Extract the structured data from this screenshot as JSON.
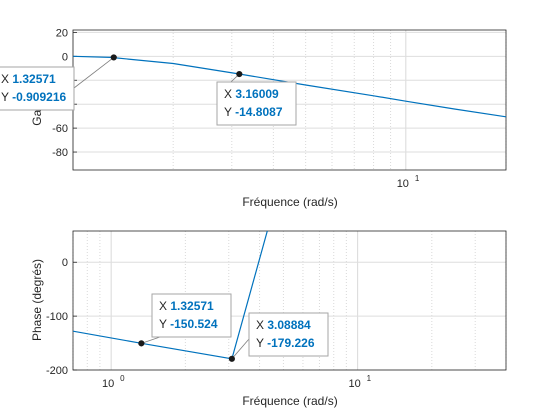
{
  "chart_data": [
    {
      "type": "line",
      "panel": "gain",
      "xlabel": "Fréquence (rad/s)",
      "ylabel": "Gain (dB)",
      "xscale": "log",
      "xlim": [
        1.0,
        20.0
      ],
      "ylim": [
        -95,
        22
      ],
      "yticks": [
        "20",
        "0",
        "-20",
        "-40",
        "-60",
        "-80"
      ],
      "ytick_values": [
        20,
        0,
        -20,
        -40,
        -60,
        -80
      ],
      "xticks": [
        {
          "value": 10,
          "base": "10",
          "exp": "1"
        }
      ],
      "grid": true,
      "line_color": "#0072bd",
      "x": [
        1.0,
        1.3,
        2.0,
        3.16,
        5.0,
        8.0,
        10.0,
        14.0,
        20.0
      ],
      "y": [
        0.0,
        -0.9,
        -6.0,
        -14.8,
        -24.0,
        -33.0,
        -37.5,
        -44.0,
        -50.5
      ],
      "datatips": [
        {
          "x_key": "X",
          "x": "1.32571",
          "y_key": "Y",
          "y": "-0.909216",
          "xv": 1.32571,
          "yv": -0.909216
        },
        {
          "x_key": "X",
          "x": "3.16009",
          "y_key": "Y",
          "y": "-14.8087",
          "xv": 3.16009,
          "yv": -14.8087
        }
      ]
    },
    {
      "type": "line",
      "panel": "phase",
      "xlabel": "Fréquence (rad/s)",
      "ylabel": "Phase (degrés)",
      "xscale": "log",
      "xlim": [
        0.7,
        40.0
      ],
      "ylim": [
        -200,
        58
      ],
      "yticks": [
        "0",
        "-100",
        "-200"
      ],
      "ytick_values": [
        0,
        -100,
        -200
      ],
      "xticks": [
        {
          "value": 1,
          "base": "10",
          "exp": "0"
        },
        {
          "value": 10,
          "base": "10",
          "exp": "1"
        }
      ],
      "grid": true,
      "line_color": "#0072bd",
      "x": [
        0.7,
        1.32571,
        3.08884,
        4.3
      ],
      "y": [
        -128,
        -150.524,
        -179.226,
        58
      ],
      "datatips": [
        {
          "x_key": "X",
          "x": "1.32571",
          "y_key": "Y",
          "y": "-150.524",
          "xv": 1.32571,
          "yv": -150.524
        },
        {
          "x_key": "X",
          "x": "3.08884",
          "y_key": "Y",
          "y": "-179.226",
          "xv": 3.08884,
          "yv": -179.226
        }
      ]
    }
  ]
}
